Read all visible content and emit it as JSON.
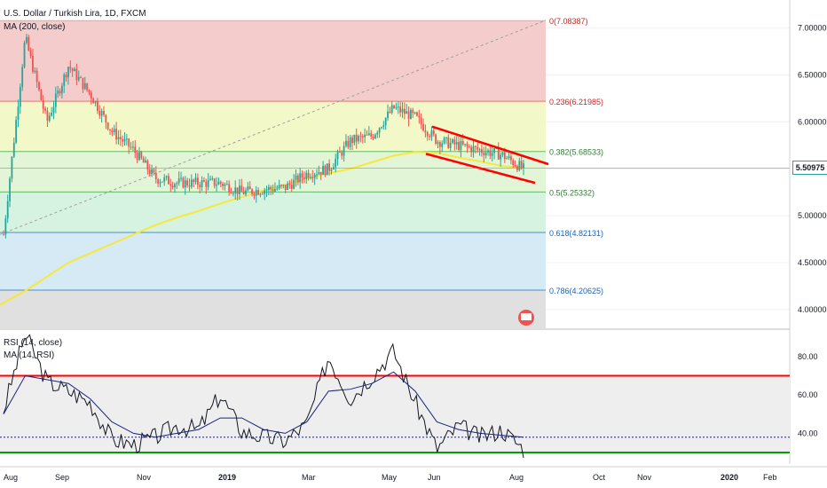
{
  "header": {
    "title": "U.S. Dollar / Turkish Lira, 1D, FXCM",
    "indicator": "MA (200, close)"
  },
  "rsi_panel": {
    "title": "RSI (14, close)",
    "ma_label": "MA (14, RSI)"
  },
  "last_price": "5.50975",
  "colors": {
    "bull": "#26a69a",
    "bear": "#ef5350",
    "ma200": "#f7e83a",
    "trendline": "#ff0000",
    "rsi": "#131722",
    "rsi_upper": "#ff0000",
    "rsi_lower": "#00a000",
    "dashed_diag": "#9e9e9e"
  },
  "chart_data": [
    {
      "type": "candlestick",
      "title": "U.S. Dollar / Turkish Lira, 1D, FXCM",
      "y_ticks": [
        "4.00000",
        "4.50000",
        "5.00000",
        "5.50000",
        "6.00000",
        "6.50000",
        "7.00000"
      ],
      "ylim": [
        3.8,
        7.3
      ],
      "x_ticks": [
        "Aug",
        "Sep",
        "Nov",
        "2019",
        "Mar",
        "May",
        "Jun",
        "Aug",
        "Oct",
        "Nov",
        "2020",
        "Feb"
      ],
      "fib_levels": [
        {
          "label": "0(7.08387)",
          "value": 7.08387,
          "fill": "#f4cccc"
        },
        {
          "label": "0.236(6.21985)",
          "value": 6.21985,
          "fill": "#f3f8c8"
        },
        {
          "label": "0.382(5.68533)",
          "value": 5.68533,
          "fill": "#e2f5d6"
        },
        {
          "label": "0.5(5.25332)",
          "value": 5.25332,
          "fill": "#d6f3e2"
        },
        {
          "label": "0.618(4.82131)",
          "value": 4.82131,
          "fill": "#d6eaf5"
        },
        {
          "label": "0.786(4.20625)",
          "value": 4.20625,
          "fill": "#e0e0e0"
        }
      ],
      "price_series": {
        "name": "USD/TRY",
        "x": [
          "Aug",
          "Aug-mid",
          "Aug-late",
          "Sep",
          "Sep-mid",
          "Oct",
          "Oct-mid",
          "Nov",
          "Nov-mid",
          "Dec",
          "2019",
          "Jan-mid",
          "Feb",
          "Feb-mid",
          "Mar",
          "Mar-mid",
          "Apr",
          "Apr-mid",
          "May",
          "May-mid",
          "Jun",
          "Jun-mid",
          "Jul",
          "Jul-mid",
          "Aug"
        ],
        "y": [
          4.8,
          6.9,
          6.0,
          6.6,
          6.3,
          5.9,
          5.7,
          5.4,
          5.35,
          5.35,
          5.35,
          5.25,
          5.28,
          5.3,
          5.45,
          5.5,
          5.8,
          5.85,
          6.15,
          6.05,
          5.8,
          5.75,
          5.7,
          5.65,
          5.5
        ]
      },
      "ma200": {
        "name": "MA (200, close)",
        "y": [
          4.05,
          4.2,
          4.35,
          4.5,
          4.6,
          4.7,
          4.8,
          4.9,
          4.98,
          5.05,
          5.13,
          5.2,
          5.27,
          5.33,
          5.4,
          5.45,
          5.5,
          5.57,
          5.64,
          5.68,
          5.67,
          5.62,
          5.58,
          5.53,
          5.51
        ]
      },
      "last": 5.50975
    },
    {
      "type": "line",
      "title": "RSI (14, close)",
      "y_ticks": [
        "40.00",
        "60.00",
        "80.00"
      ],
      "ylim": [
        24,
        92
      ],
      "levels": [
        70,
        30,
        38
      ],
      "rsi": [
        52,
        92,
        67,
        62,
        56,
        37,
        34,
        38,
        44,
        42,
        60,
        41,
        38,
        36,
        45,
        80,
        58,
        70,
        83,
        56,
        32,
        44,
        38,
        42,
        32
      ],
      "rsi_ma": [
        50,
        70,
        68,
        66,
        58,
        46,
        40,
        38,
        40,
        42,
        48,
        48,
        42,
        40,
        46,
        62,
        63,
        66,
        72,
        62,
        46,
        42,
        40,
        39,
        38
      ]
    }
  ]
}
